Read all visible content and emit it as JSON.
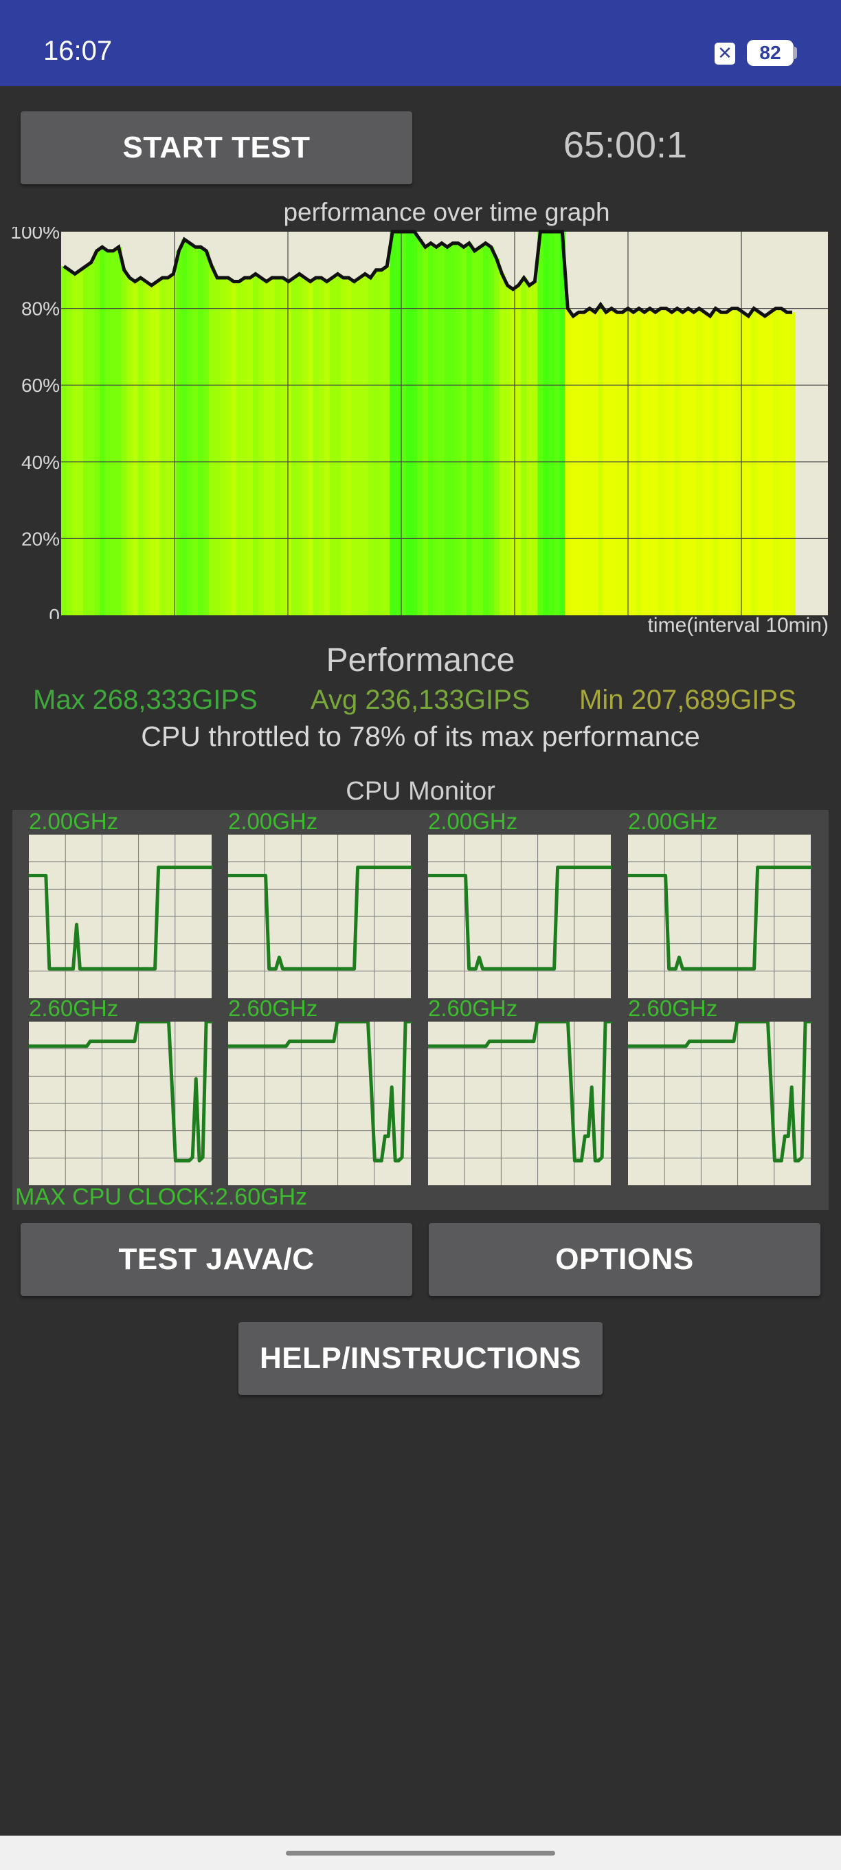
{
  "status_bar": {
    "time": "16:07",
    "notification_icon": "x-box-icon",
    "battery": "82"
  },
  "controls": {
    "start_test": "START TEST",
    "timer": "65:00:1",
    "test_java_c": "TEST JAVA/C",
    "options": "OPTIONS",
    "help": "HELP/INSTRUCTIONS"
  },
  "graph": {
    "title": "performance over time graph",
    "x_label": "time(interval 10min)",
    "y_ticks": [
      "100%",
      "80%",
      "60%",
      "40%",
      "20%",
      "0"
    ]
  },
  "chart_data": {
    "type": "area",
    "xlabel": "time(interval 10min)",
    "ylim": [
      0,
      100
    ],
    "series": [
      {
        "values": [
          91,
          90,
          89,
          90,
          91,
          92,
          95,
          96,
          95,
          95,
          96,
          90,
          88,
          87,
          88,
          87,
          86,
          87,
          88,
          88,
          89,
          95,
          98,
          97,
          96,
          96,
          95,
          91,
          88,
          88,
          88,
          87,
          87,
          88,
          88,
          89,
          88,
          87,
          88,
          88,
          88,
          87,
          88,
          89,
          88,
          87,
          88,
          88,
          87,
          88,
          89,
          88,
          88,
          87,
          88,
          89,
          88,
          90,
          90,
          91,
          100,
          100,
          100,
          100,
          100,
          98,
          96,
          97,
          96,
          97,
          96,
          97,
          97,
          96,
          97,
          95,
          96,
          97,
          96,
          93,
          89,
          86,
          85,
          86,
          88,
          86,
          87,
          100,
          100,
          100,
          100,
          100,
          80,
          78,
          79,
          79,
          80,
          79,
          81,
          79,
          80,
          79,
          79,
          80,
          79,
          80,
          79,
          80,
          79,
          80,
          80,
          79,
          80,
          79,
          80,
          79,
          80,
          79,
          78,
          80,
          79,
          79,
          80,
          80,
          79,
          78,
          80,
          79,
          78,
          79,
          80,
          80,
          79,
          79
        ]
      }
    ],
    "colors": {
      "high": "#44ff10",
      "low": "#e8ff00"
    },
    "grid": true
  },
  "performance": {
    "title": "Performance",
    "max": "Max 268,333GIPS",
    "avg": "Avg 236,133GIPS",
    "min": "Min 207,689GIPS",
    "throttle": "CPU throttled to 78% of its max performance",
    "colors": {
      "max": "#3daa3a",
      "avg": "#79a83a",
      "min": "#a8a83a"
    }
  },
  "cpu_monitor": {
    "title": "CPU Monitor",
    "max_clock": "MAX CPU CLOCK:2.60GHz",
    "cores": [
      {
        "freq": "2.00GHz",
        "values": [
          75,
          75,
          75,
          75,
          75,
          75,
          18,
          18,
          18,
          18,
          18,
          18,
          18,
          18,
          45,
          18,
          18,
          18,
          18,
          18,
          18,
          18,
          18,
          18,
          18,
          18,
          18,
          18,
          18,
          18,
          18,
          18,
          18,
          18,
          18,
          18,
          18,
          18,
          80,
          80,
          80,
          80,
          80,
          80,
          80,
          80,
          80,
          80,
          80,
          80,
          80,
          80,
          80,
          80,
          80
        ]
      },
      {
        "freq": "2.00GHz",
        "values": [
          75,
          75,
          75,
          75,
          75,
          75,
          75,
          75,
          75,
          75,
          75,
          75,
          18,
          18,
          18,
          25,
          18,
          18,
          18,
          18,
          18,
          18,
          18,
          18,
          18,
          18,
          18,
          18,
          18,
          18,
          18,
          18,
          18,
          18,
          18,
          18,
          18,
          18,
          80,
          80,
          80,
          80,
          80,
          80,
          80,
          80,
          80,
          80,
          80,
          80,
          80,
          80,
          80,
          80,
          80
        ]
      },
      {
        "freq": "2.00GHz",
        "values": [
          75,
          75,
          75,
          75,
          75,
          75,
          75,
          75,
          75,
          75,
          75,
          75,
          18,
          18,
          18,
          25,
          18,
          18,
          18,
          18,
          18,
          18,
          18,
          18,
          18,
          18,
          18,
          18,
          18,
          18,
          18,
          18,
          18,
          18,
          18,
          18,
          18,
          18,
          80,
          80,
          80,
          80,
          80,
          80,
          80,
          80,
          80,
          80,
          80,
          80,
          80,
          80,
          80,
          80,
          80
        ]
      },
      {
        "freq": "2.00GHz",
        "values": [
          75,
          75,
          75,
          75,
          75,
          75,
          75,
          75,
          75,
          75,
          75,
          75,
          18,
          18,
          18,
          25,
          18,
          18,
          18,
          18,
          18,
          18,
          18,
          18,
          18,
          18,
          18,
          18,
          18,
          18,
          18,
          18,
          18,
          18,
          18,
          18,
          18,
          18,
          80,
          80,
          80,
          80,
          80,
          80,
          80,
          80,
          80,
          80,
          80,
          80,
          80,
          80,
          80,
          80,
          80
        ]
      },
      {
        "freq": "2.60GHz",
        "values": [
          85,
          85,
          85,
          85,
          85,
          85,
          85,
          85,
          85,
          85,
          85,
          85,
          85,
          85,
          85,
          85,
          85,
          85,
          88,
          88,
          88,
          88,
          88,
          88,
          88,
          88,
          88,
          88,
          88,
          88,
          88,
          88,
          100,
          100,
          100,
          100,
          100,
          100,
          100,
          100,
          100,
          100,
          60,
          15,
          15,
          15,
          15,
          15,
          17,
          65,
          15,
          17,
          100,
          100,
          100
        ]
      },
      {
        "freq": "2.60GHz",
        "values": [
          85,
          85,
          85,
          85,
          85,
          85,
          85,
          85,
          85,
          85,
          85,
          85,
          85,
          85,
          85,
          85,
          85,
          85,
          88,
          88,
          88,
          88,
          88,
          88,
          88,
          88,
          88,
          88,
          88,
          88,
          88,
          88,
          100,
          100,
          100,
          100,
          100,
          100,
          100,
          100,
          100,
          100,
          60,
          15,
          15,
          15,
          30,
          30,
          60,
          15,
          15,
          17,
          100,
          100,
          100
        ]
      },
      {
        "freq": "2.60GHz",
        "values": [
          85,
          85,
          85,
          85,
          85,
          85,
          85,
          85,
          85,
          85,
          85,
          85,
          85,
          85,
          85,
          85,
          85,
          85,
          88,
          88,
          88,
          88,
          88,
          88,
          88,
          88,
          88,
          88,
          88,
          88,
          88,
          88,
          100,
          100,
          100,
          100,
          100,
          100,
          100,
          100,
          100,
          100,
          60,
          15,
          15,
          15,
          30,
          30,
          60,
          15,
          15,
          17,
          100,
          100,
          100
        ]
      },
      {
        "freq": "2.60GHz",
        "values": [
          85,
          85,
          85,
          85,
          85,
          85,
          85,
          85,
          85,
          85,
          85,
          85,
          85,
          85,
          85,
          85,
          85,
          85,
          88,
          88,
          88,
          88,
          88,
          88,
          88,
          88,
          88,
          88,
          88,
          88,
          88,
          88,
          100,
          100,
          100,
          100,
          100,
          100,
          100,
          100,
          100,
          100,
          60,
          15,
          15,
          15,
          30,
          30,
          60,
          15,
          15,
          17,
          100,
          100,
          100
        ]
      }
    ]
  }
}
